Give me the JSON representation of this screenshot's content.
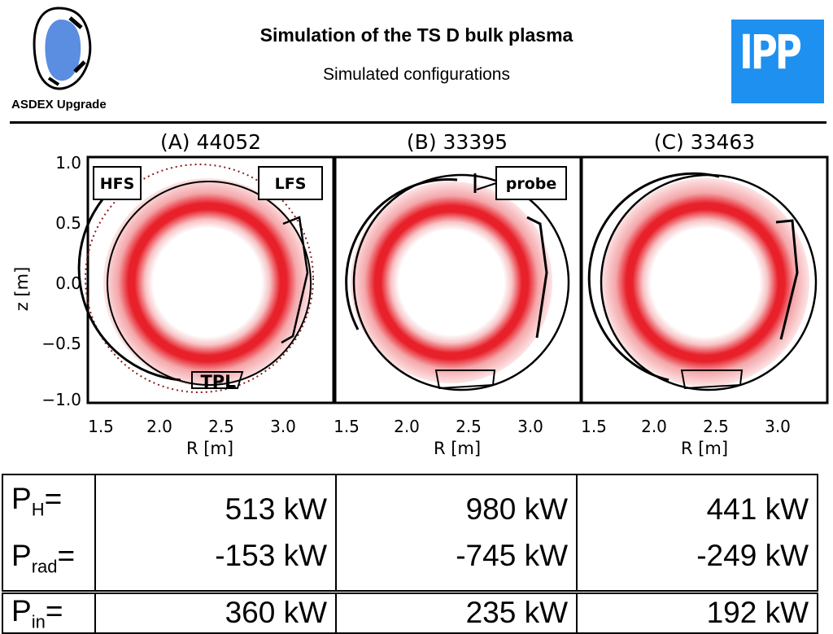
{
  "header": {
    "title": "Simulation of the TS D bulk plasma",
    "subtitle": "Simulated configurations",
    "logo_left_text": "ASDEX Upgrade",
    "logo_right_text": "IPP",
    "logo_right_color": "#1e90f0"
  },
  "figure": {
    "panels": [
      {
        "title": "(A)  44052",
        "annotations": [
          "HFS",
          "LFS",
          "TPL"
        ]
      },
      {
        "title": "(B)  33395",
        "annotations": [
          "probe"
        ]
      },
      {
        "title": "(C)  33463",
        "annotations": []
      }
    ],
    "ylabel": "z [m]",
    "xlabel": "R [m]",
    "yticks": [
      "1.0",
      "0.5",
      "0.0",
      "−0.5",
      "−1.0"
    ],
    "xticks": [
      "1.5",
      "2.0",
      "2.5",
      "3.0"
    ],
    "plasma_color": "#e8202a"
  },
  "chart_data": {
    "type": "table",
    "columns": [
      "",
      "(A) 44052",
      "(B) 33395",
      "(C) 33463"
    ],
    "rows": [
      {
        "label_main": "P",
        "label_sub": "H",
        "label_suffix": "=",
        "values": [
          "513 kW",
          "980 kW",
          "441 kW"
        ]
      },
      {
        "label_main": "P",
        "label_sub": "rad",
        "label_suffix": "=",
        "values": [
          "-153 kW",
          "-745 kW",
          "-249 kW"
        ]
      },
      {
        "label_main": "P",
        "label_sub": "in",
        "label_suffix": "=",
        "values": [
          "360 kW",
          "235 kW",
          "192 kW"
        ]
      }
    ]
  }
}
